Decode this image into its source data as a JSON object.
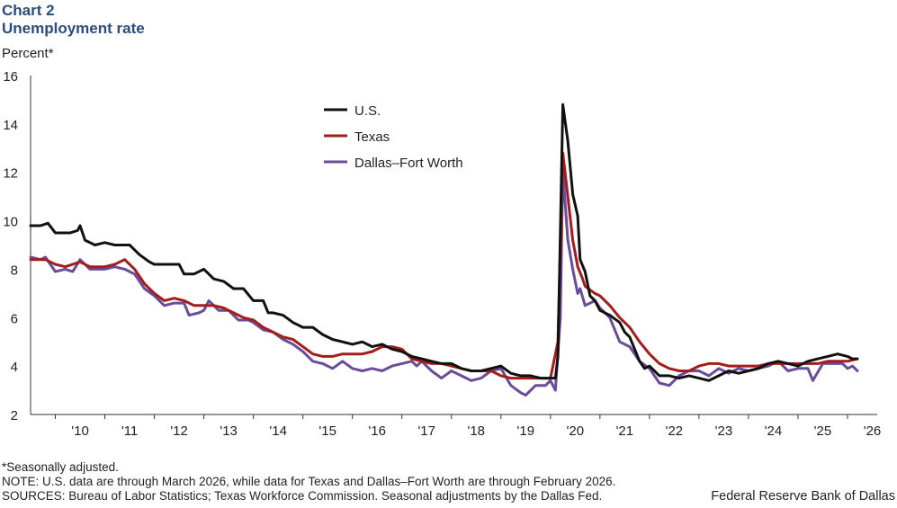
{
  "header": {
    "chart_number": "Chart 2",
    "title": "Unemployment rate",
    "ylabel": "Percent*"
  },
  "footer": {
    "note1": "*Seasonally adjusted.",
    "note2": "NOTE: U.S. data are through March 2026, while data for Texas and Dallas–Fort Worth are through February 2026.",
    "sources": "SOURCES: Bureau of Labor Statistics; Texas Workforce Commission. Seasonal adjustments by the Dallas Fed.",
    "credit": "Federal Reserve Bank of Dallas"
  },
  "chart_data": {
    "type": "line",
    "title": "Unemployment rate",
    "xlabel": "",
    "ylabel": "Percent*",
    "ylim": [
      2,
      16
    ],
    "yticks": [
      2,
      4,
      6,
      8,
      10,
      12,
      14,
      16
    ],
    "xlim": [
      2009.5,
      2026.6
    ],
    "xticks": [
      {
        "label": "'10",
        "x": 2010.5
      },
      {
        "label": "'11",
        "x": 2011.5
      },
      {
        "label": "'12",
        "x": 2012.5
      },
      {
        "label": "'13",
        "x": 2013.5
      },
      {
        "label": "'14",
        "x": 2014.5
      },
      {
        "label": "'15",
        "x": 2015.5
      },
      {
        "label": "'16",
        "x": 2016.5
      },
      {
        "label": "'17",
        "x": 2017.5
      },
      {
        "label": "'18",
        "x": 2018.5
      },
      {
        "label": "'19",
        "x": 2019.5
      },
      {
        "label": "'20",
        "x": 2020.5
      },
      {
        "label": "'21",
        "x": 2021.5
      },
      {
        "label": "'22",
        "x": 2022.5
      },
      {
        "label": "'23",
        "x": 2023.5
      },
      {
        "label": "'24",
        "x": 2024.5
      },
      {
        "label": "'25",
        "x": 2025.5
      },
      {
        "label": "'26",
        "x": 2026.5
      }
    ],
    "legend_position": "top-center",
    "series": [
      {
        "name": "U.S.",
        "color": "#111111",
        "points": [
          [
            2009.5,
            9.8
          ],
          [
            2009.7,
            9.8
          ],
          [
            2009.85,
            9.9
          ],
          [
            2010.0,
            9.5
          ],
          [
            2010.3,
            9.5
          ],
          [
            2010.45,
            9.6
          ],
          [
            2010.5,
            9.8
          ],
          [
            2010.6,
            9.2
          ],
          [
            2010.8,
            9.0
          ],
          [
            2011.0,
            9.1
          ],
          [
            2011.2,
            9.0
          ],
          [
            2011.5,
            9.0
          ],
          [
            2011.7,
            8.6
          ],
          [
            2011.9,
            8.3
          ],
          [
            2012.0,
            8.2
          ],
          [
            2012.2,
            8.2
          ],
          [
            2012.5,
            8.2
          ],
          [
            2012.6,
            7.8
          ],
          [
            2012.8,
            7.8
          ],
          [
            2013.0,
            8.0
          ],
          [
            2013.2,
            7.6
          ],
          [
            2013.4,
            7.5
          ],
          [
            2013.6,
            7.2
          ],
          [
            2013.8,
            7.2
          ],
          [
            2014.0,
            6.7
          ],
          [
            2014.2,
            6.7
          ],
          [
            2014.3,
            6.2
          ],
          [
            2014.4,
            6.2
          ],
          [
            2014.6,
            6.1
          ],
          [
            2014.8,
            5.8
          ],
          [
            2015.0,
            5.6
          ],
          [
            2015.2,
            5.6
          ],
          [
            2015.4,
            5.3
          ],
          [
            2015.6,
            5.1
          ],
          [
            2015.8,
            5.0
          ],
          [
            2016.0,
            4.9
          ],
          [
            2016.2,
            5.0
          ],
          [
            2016.4,
            4.8
          ],
          [
            2016.6,
            4.9
          ],
          [
            2016.8,
            4.7
          ],
          [
            2017.0,
            4.6
          ],
          [
            2017.2,
            4.4
          ],
          [
            2017.4,
            4.3
          ],
          [
            2017.6,
            4.2
          ],
          [
            2017.8,
            4.1
          ],
          [
            2018.0,
            4.1
          ],
          [
            2018.2,
            3.9
          ],
          [
            2018.4,
            3.8
          ],
          [
            2018.6,
            3.8
          ],
          [
            2018.8,
            3.9
          ],
          [
            2019.0,
            4.0
          ],
          [
            2019.2,
            3.7
          ],
          [
            2019.4,
            3.6
          ],
          [
            2019.6,
            3.6
          ],
          [
            2019.8,
            3.5
          ],
          [
            2019.95,
            3.5
          ],
          [
            2020.1,
            3.5
          ],
          [
            2020.15,
            4.4
          ],
          [
            2020.25,
            14.8
          ],
          [
            2020.35,
            13.3
          ],
          [
            2020.45,
            11.1
          ],
          [
            2020.55,
            10.2
          ],
          [
            2020.6,
            8.4
          ],
          [
            2020.7,
            7.9
          ],
          [
            2020.8,
            6.9
          ],
          [
            2020.9,
            6.7
          ],
          [
            2021.0,
            6.3
          ],
          [
            2021.2,
            6.1
          ],
          [
            2021.4,
            5.8
          ],
          [
            2021.5,
            5.4
          ],
          [
            2021.6,
            5.2
          ],
          [
            2021.7,
            4.7
          ],
          [
            2021.8,
            4.2
          ],
          [
            2021.9,
            3.9
          ],
          [
            2022.0,
            4.0
          ],
          [
            2022.2,
            3.6
          ],
          [
            2022.4,
            3.6
          ],
          [
            2022.6,
            3.5
          ],
          [
            2022.8,
            3.6
          ],
          [
            2023.0,
            3.5
          ],
          [
            2023.2,
            3.4
          ],
          [
            2023.4,
            3.6
          ],
          [
            2023.6,
            3.8
          ],
          [
            2023.8,
            3.7
          ],
          [
            2024.0,
            3.8
          ],
          [
            2024.2,
            3.9
          ],
          [
            2024.4,
            4.1
          ],
          [
            2024.6,
            4.2
          ],
          [
            2024.8,
            4.1
          ],
          [
            2025.0,
            4.0
          ],
          [
            2025.2,
            4.2
          ],
          [
            2025.4,
            4.3
          ],
          [
            2025.6,
            4.4
          ],
          [
            2025.8,
            4.5
          ],
          [
            2026.0,
            4.4
          ],
          [
            2026.1,
            4.3
          ],
          [
            2026.2,
            4.3
          ]
        ]
      },
      {
        "name": "Texas",
        "color": "#a51c1c",
        "points": [
          [
            2009.5,
            8.4
          ],
          [
            2009.8,
            8.4
          ],
          [
            2010.0,
            8.2
          ],
          [
            2010.2,
            8.1
          ],
          [
            2010.5,
            8.3
          ],
          [
            2010.7,
            8.1
          ],
          [
            2011.0,
            8.1
          ],
          [
            2011.2,
            8.2
          ],
          [
            2011.4,
            8.4
          ],
          [
            2011.6,
            8.0
          ],
          [
            2011.8,
            7.4
          ],
          [
            2012.0,
            7.0
          ],
          [
            2012.2,
            6.7
          ],
          [
            2012.4,
            6.8
          ],
          [
            2012.6,
            6.7
          ],
          [
            2012.8,
            6.5
          ],
          [
            2013.0,
            6.5
          ],
          [
            2013.2,
            6.5
          ],
          [
            2013.4,
            6.4
          ],
          [
            2013.6,
            6.2
          ],
          [
            2013.8,
            6.0
          ],
          [
            2014.0,
            5.9
          ],
          [
            2014.2,
            5.6
          ],
          [
            2014.4,
            5.4
          ],
          [
            2014.6,
            5.2
          ],
          [
            2014.8,
            5.1
          ],
          [
            2015.0,
            4.8
          ],
          [
            2015.2,
            4.5
          ],
          [
            2015.4,
            4.4
          ],
          [
            2015.6,
            4.4
          ],
          [
            2015.8,
            4.5
          ],
          [
            2016.0,
            4.5
          ],
          [
            2016.2,
            4.5
          ],
          [
            2016.4,
            4.6
          ],
          [
            2016.6,
            4.8
          ],
          [
            2016.8,
            4.8
          ],
          [
            2017.0,
            4.7
          ],
          [
            2017.2,
            4.3
          ],
          [
            2017.4,
            4.2
          ],
          [
            2017.6,
            4.1
          ],
          [
            2017.8,
            4.1
          ],
          [
            2018.0,
            4.0
          ],
          [
            2018.2,
            3.9
          ],
          [
            2018.4,
            3.8
          ],
          [
            2018.6,
            3.8
          ],
          [
            2018.8,
            3.8
          ],
          [
            2019.0,
            3.6
          ],
          [
            2019.2,
            3.5
          ],
          [
            2019.4,
            3.5
          ],
          [
            2019.6,
            3.5
          ],
          [
            2019.8,
            3.5
          ],
          [
            2020.0,
            3.5
          ],
          [
            2020.15,
            5.0
          ],
          [
            2020.25,
            12.8
          ],
          [
            2020.35,
            11.0
          ],
          [
            2020.45,
            9.2
          ],
          [
            2020.55,
            8.1
          ],
          [
            2020.65,
            7.6
          ],
          [
            2020.7,
            7.3
          ],
          [
            2020.9,
            7.0
          ],
          [
            2021.0,
            6.9
          ],
          [
            2021.2,
            6.5
          ],
          [
            2021.4,
            6.0
          ],
          [
            2021.6,
            5.6
          ],
          [
            2021.8,
            5.0
          ],
          [
            2022.0,
            4.5
          ],
          [
            2022.2,
            4.1
          ],
          [
            2022.4,
            3.9
          ],
          [
            2022.6,
            3.8
          ],
          [
            2022.8,
            3.8
          ],
          [
            2023.0,
            4.0
          ],
          [
            2023.2,
            4.1
          ],
          [
            2023.4,
            4.1
          ],
          [
            2023.6,
            4.0
          ],
          [
            2023.8,
            4.0
          ],
          [
            2024.0,
            4.0
          ],
          [
            2024.2,
            4.0
          ],
          [
            2024.4,
            4.1
          ],
          [
            2024.6,
            4.1
          ],
          [
            2024.8,
            4.1
          ],
          [
            2025.0,
            4.1
          ],
          [
            2025.2,
            4.1
          ],
          [
            2025.4,
            4.1
          ],
          [
            2025.6,
            4.2
          ],
          [
            2025.8,
            4.2
          ],
          [
            2026.0,
            4.2
          ],
          [
            2026.2,
            4.3
          ]
        ]
      },
      {
        "name": "Dallas–Fort Worth",
        "color": "#6b4c9a",
        "points": [
          [
            2009.5,
            8.5
          ],
          [
            2009.7,
            8.4
          ],
          [
            2009.8,
            8.5
          ],
          [
            2010.0,
            7.9
          ],
          [
            2010.2,
            8.0
          ],
          [
            2010.35,
            7.9
          ],
          [
            2010.5,
            8.4
          ],
          [
            2010.7,
            8.0
          ],
          [
            2011.0,
            8.0
          ],
          [
            2011.2,
            8.1
          ],
          [
            2011.4,
            8.0
          ],
          [
            2011.6,
            7.8
          ],
          [
            2011.8,
            7.2
          ],
          [
            2012.0,
            6.9
          ],
          [
            2012.2,
            6.5
          ],
          [
            2012.4,
            6.6
          ],
          [
            2012.6,
            6.6
          ],
          [
            2012.7,
            6.1
          ],
          [
            2012.9,
            6.2
          ],
          [
            2013.0,
            6.3
          ],
          [
            2013.1,
            6.7
          ],
          [
            2013.3,
            6.3
          ],
          [
            2013.5,
            6.3
          ],
          [
            2013.7,
            5.9
          ],
          [
            2013.9,
            5.9
          ],
          [
            2014.0,
            5.8
          ],
          [
            2014.2,
            5.5
          ],
          [
            2014.4,
            5.4
          ],
          [
            2014.6,
            5.1
          ],
          [
            2014.8,
            4.9
          ],
          [
            2015.0,
            4.6
          ],
          [
            2015.2,
            4.2
          ],
          [
            2015.4,
            4.1
          ],
          [
            2015.6,
            3.9
          ],
          [
            2015.8,
            4.2
          ],
          [
            2016.0,
            3.9
          ],
          [
            2016.2,
            3.8
          ],
          [
            2016.4,
            3.9
          ],
          [
            2016.6,
            3.8
          ],
          [
            2016.8,
            4.0
          ],
          [
            2017.0,
            4.1
          ],
          [
            2017.2,
            4.2
          ],
          [
            2017.3,
            4.0
          ],
          [
            2017.4,
            4.2
          ],
          [
            2017.6,
            3.8
          ],
          [
            2017.8,
            3.5
          ],
          [
            2018.0,
            3.8
          ],
          [
            2018.2,
            3.6
          ],
          [
            2018.4,
            3.4
          ],
          [
            2018.6,
            3.5
          ],
          [
            2018.8,
            3.8
          ],
          [
            2019.0,
            3.9
          ],
          [
            2019.2,
            3.2
          ],
          [
            2019.4,
            2.9
          ],
          [
            2019.5,
            2.8
          ],
          [
            2019.7,
            3.2
          ],
          [
            2019.9,
            3.2
          ],
          [
            2020.0,
            3.4
          ],
          [
            2020.1,
            3.0
          ],
          [
            2020.2,
            6.0
          ],
          [
            2020.25,
            12.1
          ],
          [
            2020.35,
            9.2
          ],
          [
            2020.45,
            8.0
          ],
          [
            2020.55,
            7.0
          ],
          [
            2020.6,
            7.2
          ],
          [
            2020.7,
            6.5
          ],
          [
            2020.9,
            6.7
          ],
          [
            2021.0,
            6.4
          ],
          [
            2021.2,
            6.0
          ],
          [
            2021.3,
            5.5
          ],
          [
            2021.4,
            5.0
          ],
          [
            2021.6,
            4.8
          ],
          [
            2021.8,
            4.2
          ],
          [
            2022.0,
            3.9
          ],
          [
            2022.2,
            3.3
          ],
          [
            2022.4,
            3.2
          ],
          [
            2022.6,
            3.6
          ],
          [
            2022.8,
            3.8
          ],
          [
            2023.0,
            3.8
          ],
          [
            2023.2,
            3.6
          ],
          [
            2023.4,
            3.9
          ],
          [
            2023.6,
            3.7
          ],
          [
            2023.8,
            3.9
          ],
          [
            2024.0,
            3.8
          ],
          [
            2024.2,
            3.9
          ],
          [
            2024.4,
            4.0
          ],
          [
            2024.6,
            4.2
          ],
          [
            2024.8,
            3.8
          ],
          [
            2025.0,
            3.9
          ],
          [
            2025.2,
            3.9
          ],
          [
            2025.3,
            3.4
          ],
          [
            2025.5,
            4.1
          ],
          [
            2025.7,
            4.1
          ],
          [
            2025.9,
            4.1
          ],
          [
            2026.0,
            3.9
          ],
          [
            2026.1,
            4.0
          ],
          [
            2026.2,
            3.8
          ]
        ]
      }
    ]
  }
}
